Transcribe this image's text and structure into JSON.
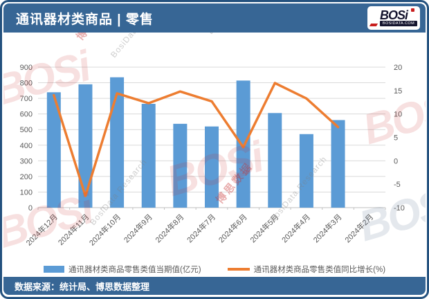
{
  "header": {
    "title": "通讯器材类商品 | 零售"
  },
  "logo": {
    "text": "BOSi",
    "subtext": "BOSIDATA.COM"
  },
  "footer": {
    "source_text": "数据来源：统计局、博思数据整理"
  },
  "watermark": {
    "logo_text": "BOSi",
    "cn_text": "博思数据",
    "en_text": "BosiData Research"
  },
  "colors": {
    "header_blue": "#376695",
    "border_blue": "#24517E",
    "bar": "#5B9BD5",
    "line": "#ED7D31"
  },
  "chart_data": {
    "type": "bar+line combo",
    "categories": [
      "2024年12月",
      "2024年11月",
      "2024年10月",
      "2024年9月",
      "2024年8月",
      "2024年7月",
      "2024年6月",
      "2024年5月",
      "2024年4月",
      "2024年3月",
      "2024年2月"
    ],
    "series": [
      {
        "name": "通讯器材类商品零售类值当期值(亿元)",
        "type": "bar",
        "axis": "left",
        "color": "#5B9BD5",
        "values": [
          739,
          790,
          835,
          665,
          537,
          520,
          814,
          606,
          471,
          561,
          null
        ]
      },
      {
        "name": "通讯器材类商品零售类值同比增长(%)",
        "type": "line",
        "axis": "right",
        "color": "#ED7D31",
        "values": [
          14.0,
          -7.5,
          14.4,
          12.3,
          14.8,
          12.7,
          2.9,
          16.6,
          13.3,
          7.2,
          null
        ]
      }
    ],
    "left_axis": {
      "min": 0,
      "max": 900,
      "step": 100
    },
    "right_axis": {
      "min": -10,
      "max": 20,
      "step": 5
    },
    "grid": true,
    "legend_position": "bottom",
    "x_label_rotation": -45
  }
}
